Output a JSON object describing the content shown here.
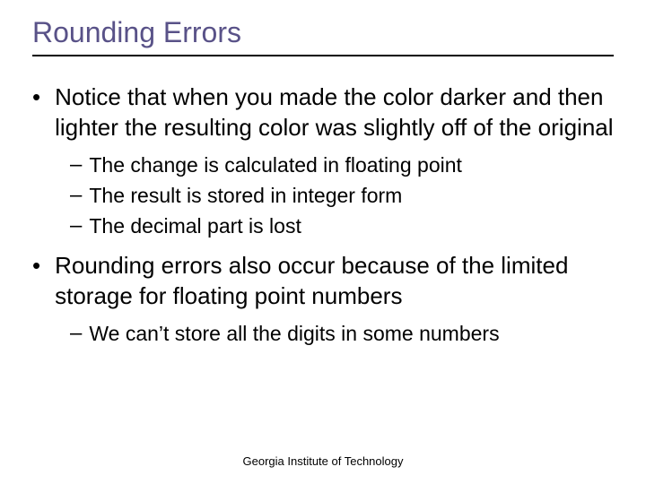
{
  "slide": {
    "title": "Rounding Errors",
    "title_color": "#595288",
    "title_fontsize": 32,
    "underline_color": "#000000",
    "background_color": "#ffffff",
    "body_color": "#000000",
    "l1_fontsize": 26,
    "l2_fontsize": 23,
    "bullets": {
      "b1": "Notice that when you made the color darker and then lighter the resulting color was slightly off of the original",
      "b1a": "The change is calculated in floating point",
      "b1b": "The result is stored in integer form",
      "b1c": "The decimal part is lost",
      "b2": "Rounding errors also occur because of the limited storage for floating point numbers",
      "b2a": "We can’t store all the digits in some numbers"
    },
    "footer": "Georgia Institute of Technology"
  }
}
